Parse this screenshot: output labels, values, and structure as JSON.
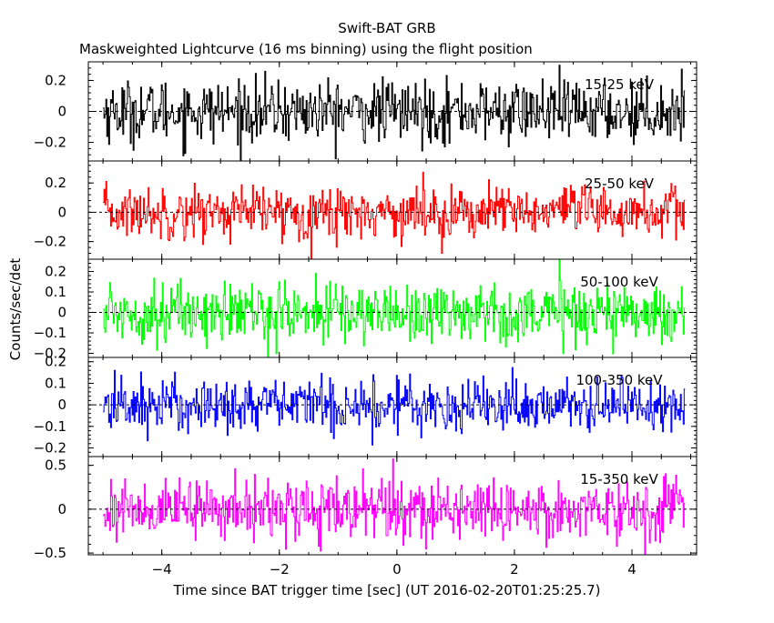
{
  "header": {
    "title": "Swift-BAT GRB",
    "subtitle": "Maskweighted Lightcurve (16 ms binning) using the flight position"
  },
  "chart_data": {
    "type": "line",
    "title": "Swift-BAT GRB",
    "subtitle": "Maskweighted Lightcurve (16 ms binning) using the flight position",
    "xlabel": "Time since BAT trigger time [sec] (UT 2016-02-20T01:25:25.7)",
    "ylabel": "Counts/sec/det",
    "xlim": [
      -5.25,
      5.1
    ],
    "x_ticks": [
      -4,
      -2,
      0,
      2,
      4
    ],
    "x_tick_labels": [
      "−4",
      "−2",
      "0",
      "2",
      "4"
    ],
    "bin_size_sec": 0.016,
    "x_start": -5.0,
    "x_end": 4.9,
    "grid": false,
    "panels": [
      {
        "name": "15-25 keV",
        "color": "#000000",
        "ylim": [
          -0.32,
          0.32
        ],
        "y_ticks": [
          -0.2,
          0,
          0.2
        ],
        "y_tick_labels": [
          "−0.2",
          "0",
          "0.2"
        ],
        "noise_std": 0.1
      },
      {
        "name": "25-50 keV",
        "color": "#ff0000",
        "ylim": [
          -0.32,
          0.35
        ],
        "y_ticks": [
          -0.2,
          0,
          0.2
        ],
        "y_tick_labels": [
          "−0.2",
          "0",
          "0.2"
        ],
        "noise_std": 0.09
      },
      {
        "name": "50-100 keV",
        "color": "#00ff00",
        "ylim": [
          -0.22,
          0.26
        ],
        "y_ticks": [
          -0.2,
          -0.1,
          0,
          0.1,
          0.2
        ],
        "y_tick_labels": [
          "−0.2",
          "−0.1",
          "0",
          "0.1",
          "0.2"
        ],
        "noise_std": 0.075
      },
      {
        "name": "100-350 keV",
        "color": "#0000ff",
        "ylim": [
          -0.24,
          0.22
        ],
        "y_ticks": [
          -0.2,
          -0.1,
          0,
          0.1,
          0.2
        ],
        "y_tick_labels": [
          "−0.2",
          "−0.1",
          "0",
          "0.1",
          "0.2"
        ],
        "noise_std": 0.065
      },
      {
        "name": "15-350 keV",
        "color": "#ff00ff",
        "ylim": [
          -0.52,
          0.6
        ],
        "y_ticks": [
          -0.5,
          0,
          0.5
        ],
        "y_tick_labels": [
          "−0.5",
          "0",
          "0.5"
        ],
        "noise_std": 0.17
      }
    ]
  }
}
